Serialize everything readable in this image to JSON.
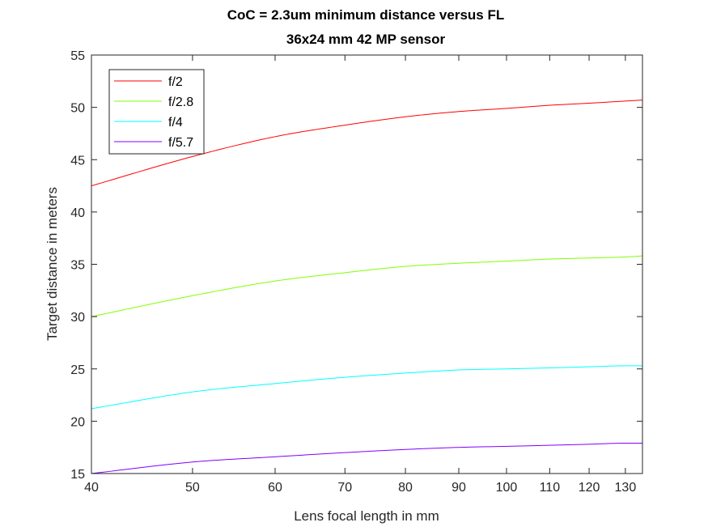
{
  "chart_data": {
    "type": "line",
    "title": "CoC = 2.3um minimum distance versus FL",
    "subtitle": "36x24 mm 42 MP sensor",
    "xlabel": "Lens focal length in mm",
    "ylabel": "Target distance in meters",
    "xscale": "log",
    "xlim": [
      40,
      135
    ],
    "ylim": [
      15,
      55
    ],
    "xticks": [
      "40",
      "50",
      "60",
      "70",
      "80",
      "90",
      "100",
      "110",
      "120",
      "130"
    ],
    "yticks": [
      "15",
      "20",
      "25",
      "30",
      "35",
      "40",
      "45",
      "50",
      "55"
    ],
    "grid": false,
    "legend_position": "top-left",
    "x": [
      40,
      50,
      60,
      70,
      80,
      90,
      100,
      110,
      120,
      130,
      135
    ],
    "series": [
      {
        "name": "f/2",
        "color": "#ff0000",
        "values": [
          42.5,
          45.3,
          47.2,
          48.3,
          49.1,
          49.6,
          49.9,
          50.2,
          50.4,
          50.6,
          50.7
        ]
      },
      {
        "name": "f/2.8",
        "color": "#80ff00",
        "values": [
          30.0,
          32.0,
          33.4,
          34.2,
          34.8,
          35.1,
          35.3,
          35.5,
          35.6,
          35.7,
          35.8
        ]
      },
      {
        "name": "f/4",
        "color": "#00ffff",
        "values": [
          21.2,
          22.8,
          23.6,
          24.2,
          24.6,
          24.9,
          25.0,
          25.1,
          25.2,
          25.3,
          25.3
        ]
      },
      {
        "name": "f/5.7",
        "color": "#8000ff",
        "values": [
          15.0,
          16.1,
          16.6,
          17.0,
          17.3,
          17.5,
          17.6,
          17.7,
          17.8,
          17.9,
          17.9
        ]
      }
    ]
  }
}
